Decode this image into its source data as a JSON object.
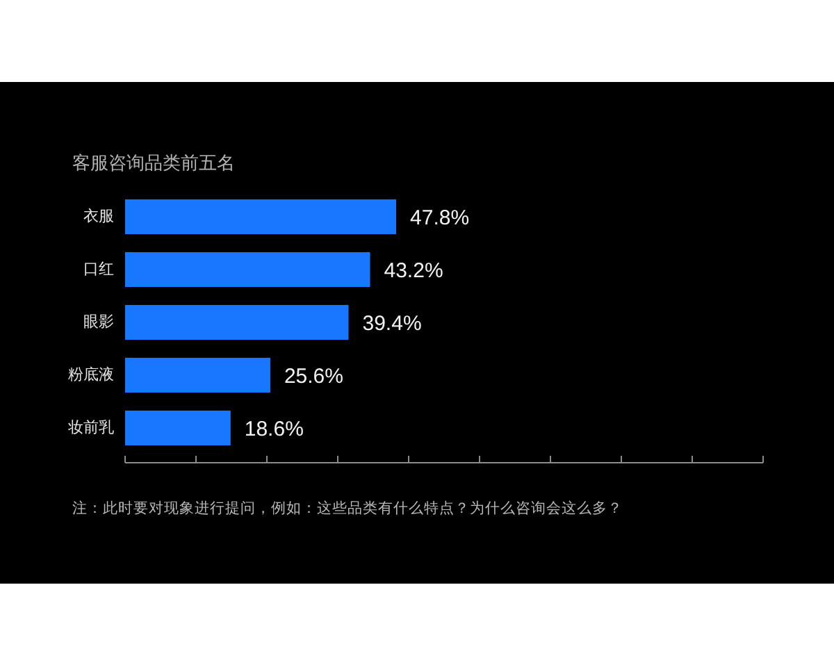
{
  "chart_data": {
    "type": "bar",
    "orientation": "horizontal",
    "title": "客服咨询品类前五名",
    "categories": [
      "衣服",
      "口红",
      "眼影",
      "粉底液",
      "妆前乳"
    ],
    "values": [
      47.8,
      43.2,
      39.4,
      25.6,
      18.6
    ],
    "value_labels": [
      "47.8%",
      "43.2%",
      "39.4%",
      "25.6%",
      "18.6%"
    ],
    "color": "#1778ff",
    "xlim": [
      0,
      112.5
    ],
    "xticks": [
      0,
      12.5,
      25,
      37.5,
      50,
      62.5,
      75,
      87.5,
      100,
      112.5
    ],
    "tick_labels": "y",
    "annotations": [
      "注：此时要对现象进行提问，例如：这些品类有什么特点？为什么咨询会这么多？"
    ]
  }
}
